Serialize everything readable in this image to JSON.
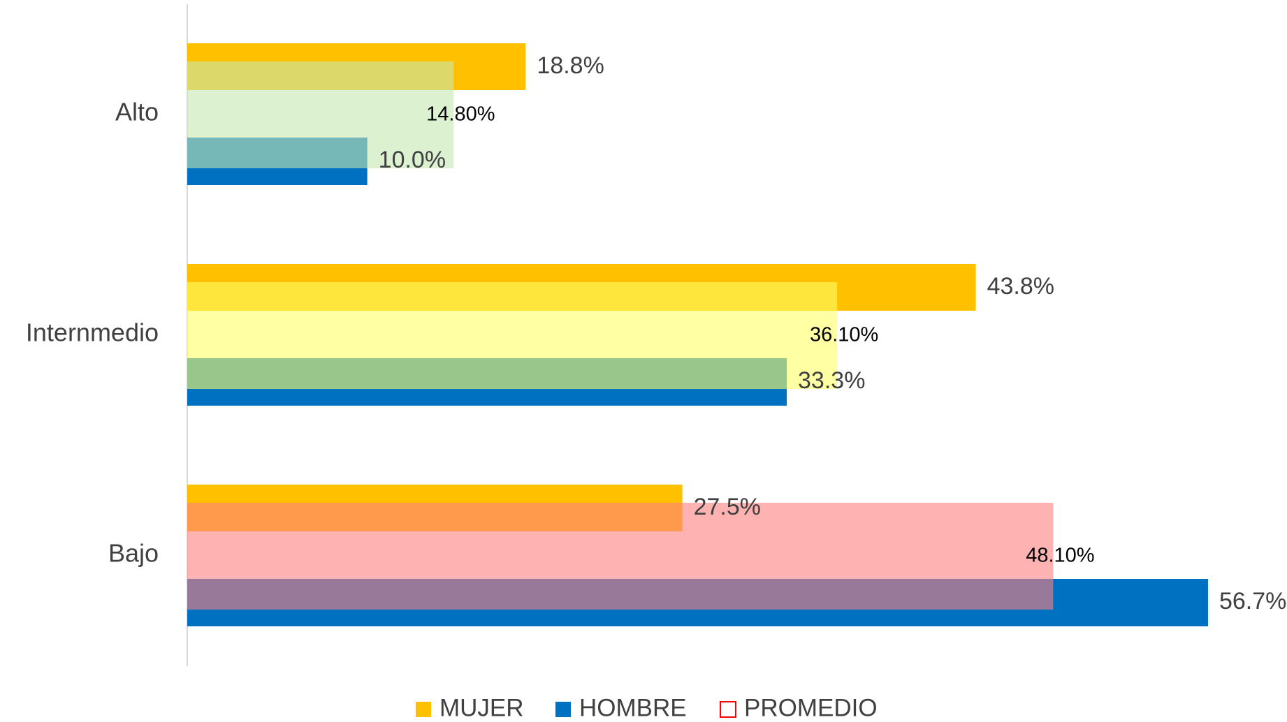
{
  "chart_data": {
    "type": "barh",
    "categories": [
      "Alto",
      "Internmedio",
      "Bajo"
    ],
    "series": [
      {
        "name": "MUJER",
        "color": "#ffc000",
        "values": [
          18.8,
          43.8,
          27.5
        ],
        "value_labels": [
          "18.8%",
          "43.8%",
          "27.5%"
        ]
      },
      {
        "name": "HOMBRE",
        "color": "#0070c0",
        "values": [
          10.0,
          33.3,
          56.7
        ],
        "value_labels": [
          "10.0%",
          "33.3%",
          "56.7%"
        ]
      },
      {
        "name": "PROMEDIO",
        "color": "#ffffff",
        "edgecolor": "#ff0000",
        "colors": [
          "#c5e8b0",
          "#ffff66",
          "#ff7f7f"
        ],
        "values": [
          14.8,
          36.1,
          48.1
        ],
        "value_labels": [
          "14.80%",
          "36.10%",
          "48.10%"
        ]
      }
    ],
    "xlim": [
      0,
      60
    ],
    "legend": "bottom"
  }
}
